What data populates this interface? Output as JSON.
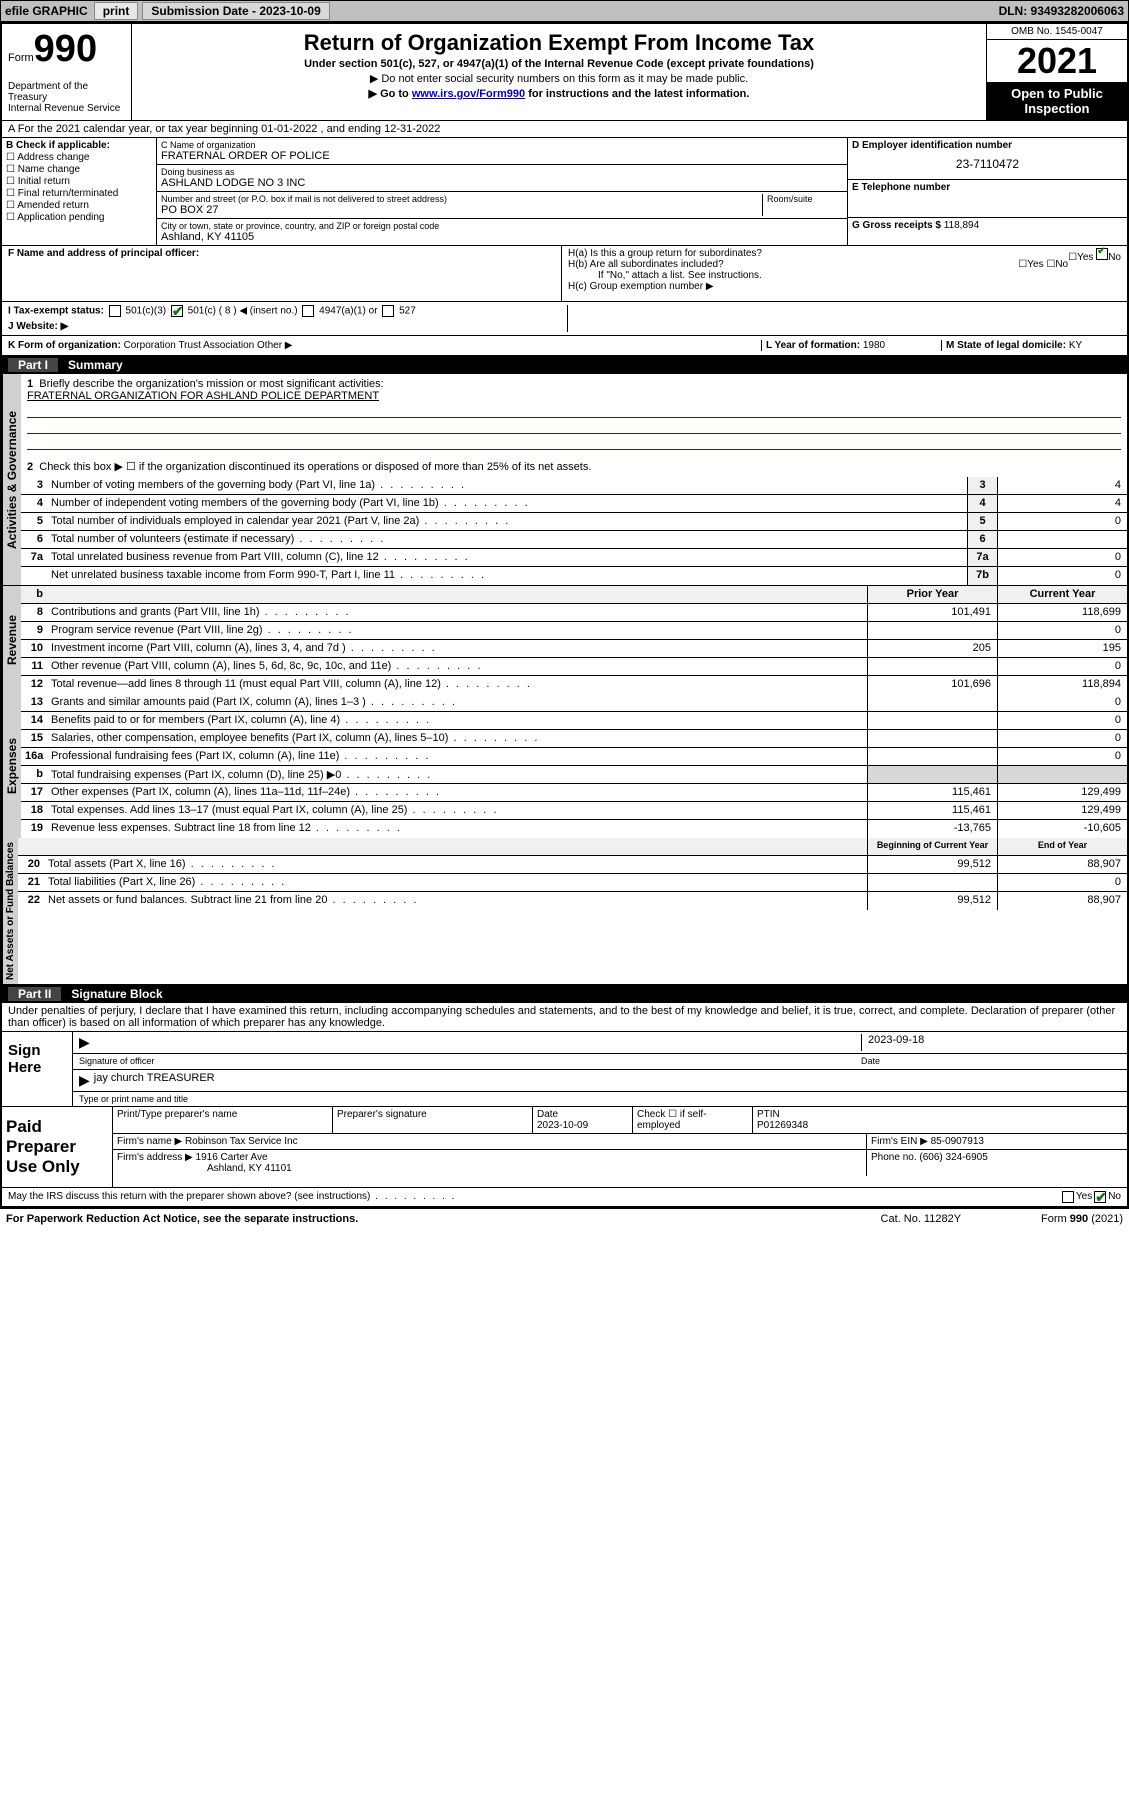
{
  "topbar": {
    "efile": "efile GRAPHIC",
    "print": "print",
    "subdate_label": "Submission Date - 2023-10-09",
    "dln": "DLN: 93493282006063"
  },
  "header": {
    "form_prefix": "Form",
    "form_num": "990",
    "dept": "Department of the Treasury\nInternal Revenue Service",
    "title": "Return of Organization Exempt From Income Tax",
    "sub": "Under section 501(c), 527, or 4947(a)(1) of the Internal Revenue Code (except private foundations)",
    "note1": "▶ Do not enter social security numbers on this form as it may be made public.",
    "note2_pre": "▶ Go to ",
    "note2_link": "www.irs.gov/Form990",
    "note2_post": " for instructions and the latest information.",
    "omb": "OMB No. 1545-0047",
    "year": "2021",
    "open": "Open to Public Inspection"
  },
  "A": "A For the 2021 calendar year, or tax year beginning 01-01-2022   , and ending 12-31-2022",
  "B": {
    "label": "B Check if applicable:",
    "items": [
      "Address change",
      "Name change",
      "Initial return",
      "Final return/terminated",
      "Amended return",
      "Application pending"
    ]
  },
  "C": {
    "name_lab": "C Name of organization",
    "name": "FRATERNAL ORDER OF POLICE",
    "dba_lab": "Doing business as",
    "dba": "ASHLAND LODGE NO 3 INC",
    "addr_lab": "Number and street (or P.O. box if mail is not delivered to street address)",
    "room_lab": "Room/suite",
    "addr": "PO BOX 27",
    "city_lab": "City or town, state or province, country, and ZIP or foreign postal code",
    "city": "Ashland, KY  41105"
  },
  "D": {
    "lab": "D Employer identification number",
    "val": "23-7110472"
  },
  "E": {
    "lab": "E Telephone number",
    "val": ""
  },
  "G": {
    "lab": "G Gross receipts $",
    "val": "118,894"
  },
  "F": "F  Name and address of principal officer:",
  "H": {
    "ha": "H(a)  Is this a group return for subordinates?",
    "ha_yes": "Yes",
    "ha_no_chk": "No",
    "hb": "H(b)  Are all subordinates included?",
    "hb_yes": "Yes",
    "hb_no": "No",
    "hb_note": "If \"No,\" attach a list. See instructions.",
    "hc": "H(c)  Group exemption number ▶"
  },
  "I": {
    "lab": "I   Tax-exempt status:",
    "c3": "501(c)(3)",
    "c": "501(c) ( 8 ) ◀ (insert no.)",
    "c_checked": true,
    "a1": "4947(a)(1) or",
    "s527": "527"
  },
  "J": "J   Website: ▶",
  "K": {
    "lab": "K Form of organization:",
    "corp": "Corporation",
    "trust": "Trust",
    "assoc": "Association",
    "assoc_checked": true,
    "other": "Other ▶"
  },
  "L": {
    "lab": "L Year of formation:",
    "val": "1980"
  },
  "M": {
    "lab": "M State of legal domicile:",
    "val": "KY"
  },
  "part1": {
    "hdr": "Part I",
    "title": "Summary"
  },
  "summary": {
    "q1": "Briefly describe the organization's mission or most significant activities:",
    "q1a": "FRATERNAL ORGANIZATION FOR ASHLAND POLICE DEPARTMENT",
    "q2": "Check this box ▶ ☐  if the organization discontinued its operations or disposed of more than 25% of its net assets.",
    "lines_gov": [
      {
        "n": "3",
        "t": "Number of voting members of the governing body (Part VI, line 1a)",
        "box": "3",
        "v": "4"
      },
      {
        "n": "4",
        "t": "Number of independent voting members of the governing body (Part VI, line 1b)",
        "box": "4",
        "v": "4"
      },
      {
        "n": "5",
        "t": "Total number of individuals employed in calendar year 2021 (Part V, line 2a)",
        "box": "5",
        "v": "0"
      },
      {
        "n": "6",
        "t": "Total number of volunteers (estimate if necessary)",
        "box": "6",
        "v": ""
      },
      {
        "n": "7a",
        "t": "Total unrelated business revenue from Part VIII, column (C), line 12",
        "box": "7a",
        "v": "0"
      },
      {
        "n": "",
        "t": "Net unrelated business taxable income from Form 990-T, Part I, line 11",
        "box": "7b",
        "v": "0"
      }
    ],
    "col_prior": "Prior Year",
    "col_curr": "Current Year",
    "rev": [
      {
        "n": "8",
        "t": "Contributions and grants (Part VIII, line 1h)",
        "p": "101,491",
        "c": "118,699"
      },
      {
        "n": "9",
        "t": "Program service revenue (Part VIII, line 2g)",
        "p": "",
        "c": "0"
      },
      {
        "n": "10",
        "t": "Investment income (Part VIII, column (A), lines 3, 4, and 7d )",
        "p": "205",
        "c": "195"
      },
      {
        "n": "11",
        "t": "Other revenue (Part VIII, column (A), lines 5, 6d, 8c, 9c, 10c, and 11e)",
        "p": "",
        "c": "0"
      },
      {
        "n": "12",
        "t": "Total revenue—add lines 8 through 11 (must equal Part VIII, column (A), line 12)",
        "p": "101,696",
        "c": "118,894"
      }
    ],
    "exp": [
      {
        "n": "13",
        "t": "Grants and similar amounts paid (Part IX, column (A), lines 1–3 )",
        "p": "",
        "c": "0"
      },
      {
        "n": "14",
        "t": "Benefits paid to or for members (Part IX, column (A), line 4)",
        "p": "",
        "c": "0"
      },
      {
        "n": "15",
        "t": "Salaries, other compensation, employee benefits (Part IX, column (A), lines 5–10)",
        "p": "",
        "c": "0"
      },
      {
        "n": "16a",
        "t": "Professional fundraising fees (Part IX, column (A), line 11e)",
        "p": "",
        "c": "0"
      },
      {
        "n": "b",
        "t": "Total fundraising expenses (Part IX, column (D), line 25) ▶0",
        "p": "grey",
        "c": "grey"
      },
      {
        "n": "17",
        "t": "Other expenses (Part IX, column (A), lines 11a–11d, 11f–24e)",
        "p": "115,461",
        "c": "129,499"
      },
      {
        "n": "18",
        "t": "Total expenses. Add lines 13–17 (must equal Part IX, column (A), line 25)",
        "p": "115,461",
        "c": "129,499"
      },
      {
        "n": "19",
        "t": "Revenue less expenses. Subtract line 18 from line 12",
        "p": "-13,765",
        "c": "-10,605"
      }
    ],
    "net_hdr_p": "Beginning of Current Year",
    "net_hdr_c": "End of Year",
    "net": [
      {
        "n": "20",
        "t": "Total assets (Part X, line 16)",
        "p": "99,512",
        "c": "88,907"
      },
      {
        "n": "21",
        "t": "Total liabilities (Part X, line 26)",
        "p": "",
        "c": "0"
      },
      {
        "n": "22",
        "t": "Net assets or fund balances. Subtract line 21 from line 20",
        "p": "99,512",
        "c": "88,907"
      }
    ]
  },
  "side": {
    "gov": "Activities & Governance",
    "rev": "Revenue",
    "exp": "Expenses",
    "net": "Net Assets or Fund Balances"
  },
  "part2": {
    "hdr": "Part II",
    "title": "Signature Block"
  },
  "sig": {
    "perjury": "Under penalties of perjury, I declare that I have examined this return, including accompanying schedules and statements, and to the best of my knowledge and belief, it is true, correct, and complete. Declaration of preparer (other than officer) is based on all information of which preparer has any knowledge.",
    "sign_here": "Sign Here",
    "sig_officer": "Signature of officer",
    "date": "Date",
    "date_val": "2023-09-18",
    "name": "jay church TREASURER",
    "name_lab": "Type or print name and title"
  },
  "paid": {
    "lab": "Paid Preparer Use Only",
    "h_name": "Print/Type preparer's name",
    "h_sig": "Preparer's signature",
    "h_date": "Date",
    "date": "2023-10-09",
    "h_chk": "Check ☐ if self-employed",
    "h_ptin": "PTIN",
    "ptin": "P01269348",
    "firm_lab": "Firm's name    ▶",
    "firm": "Robinson Tax Service Inc",
    "ein_lab": "Firm's EIN ▶",
    "ein": "85-0907913",
    "addr_lab": "Firm's address ▶",
    "addr1": "1916 Carter Ave",
    "addr2": "Ashland, KY  41101",
    "phone_lab": "Phone no.",
    "phone": "(606) 324-6905"
  },
  "may": {
    "q": "May the IRS discuss this return with the preparer shown above? (see instructions)",
    "yes": "Yes",
    "no": "No",
    "no_checked": true
  },
  "footer": {
    "pra": "For Paperwork Reduction Act Notice, see the separate instructions.",
    "cat": "Cat. No. 11282Y",
    "form": "Form 990 (2021)"
  }
}
